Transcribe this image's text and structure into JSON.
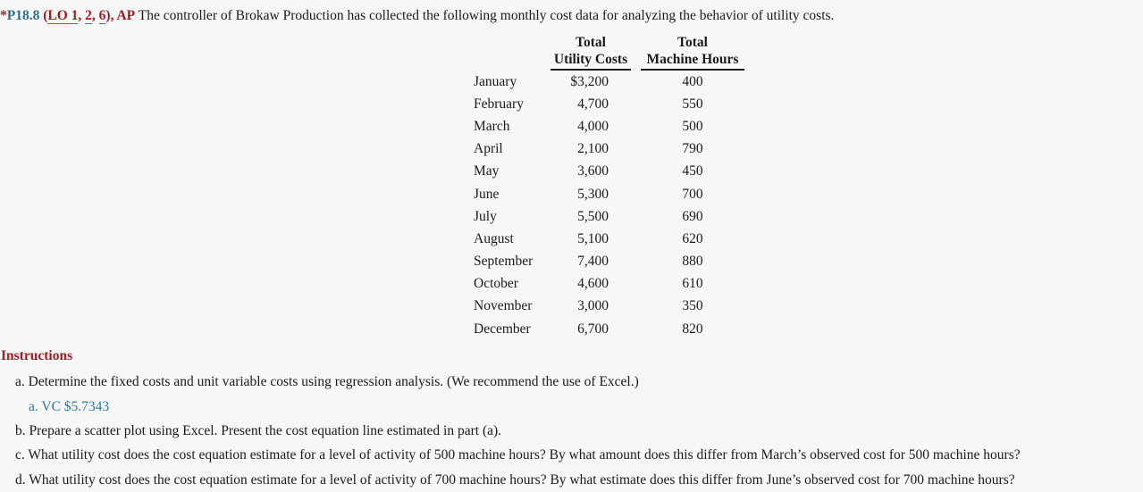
{
  "problem": {
    "star": "*",
    "number": "P18.8",
    "pre": " (",
    "lo_links": [
      "LO 1",
      "2",
      "6"
    ],
    "sep": ", ",
    "post": "), ",
    "ap": "AP",
    "intro": " The controller of Brokaw Production has collected the following monthly cost data for analyzing the behavior of utility costs."
  },
  "cost_table": {
    "headers": {
      "utility_line1": "Total",
      "utility_line2": "Utility Costs",
      "machine_line1": "Total",
      "machine_line2": "Machine Hours"
    },
    "rows": [
      {
        "month": "January",
        "utility": "$3,200",
        "hours": "400"
      },
      {
        "month": "February",
        "utility": "4,700",
        "hours": "550"
      },
      {
        "month": "March",
        "utility": "4,000",
        "hours": "500"
      },
      {
        "month": "April",
        "utility": "2,100",
        "hours": "790"
      },
      {
        "month": "May",
        "utility": "3,600",
        "hours": "450"
      },
      {
        "month": "June",
        "utility": "5,300",
        "hours": "700"
      },
      {
        "month": "July",
        "utility": "5,500",
        "hours": "690"
      },
      {
        "month": "August",
        "utility": "5,100",
        "hours": "620"
      },
      {
        "month": "September",
        "utility": "7,400",
        "hours": "880"
      },
      {
        "month": "October",
        "utility": "4,600",
        "hours": "610"
      },
      {
        "month": "November",
        "utility": "3,000",
        "hours": "350"
      },
      {
        "month": "December",
        "utility": "6,700",
        "hours": "820"
      }
    ]
  },
  "instructions": {
    "heading": "Instructions",
    "items": [
      {
        "label": "a.",
        "text": "Determine the fixed costs and unit variable costs using regression analysis. (We recommend the use of Excel.)"
      },
      {
        "label": "b.",
        "text": "Prepare a scatter plot using Excel. Present the cost equation line estimated in part (a)."
      },
      {
        "label": "c.",
        "text": "What utility cost does the cost equation estimate for a level of activity of 500 machine hours? By what amount does this differ from March’s observed cost for 500 machine hours?"
      },
      {
        "label": "d.",
        "text": "What utility cost does the cost equation estimate for a level of activity of 700 machine hours? By what estimate does this differ from June’s observed cost for 700 machine hours?"
      }
    ],
    "answer_a": {
      "label": "a.",
      "text": "VC $5.7343"
    }
  },
  "colors": {
    "background": "#f7f7f7",
    "text": "#1b1b1b",
    "accent_blue": "#2e6e8e",
    "accent_red": "#a11d23",
    "answer_blue": "#2e7cab",
    "link_underline": "#3f6fc0"
  }
}
